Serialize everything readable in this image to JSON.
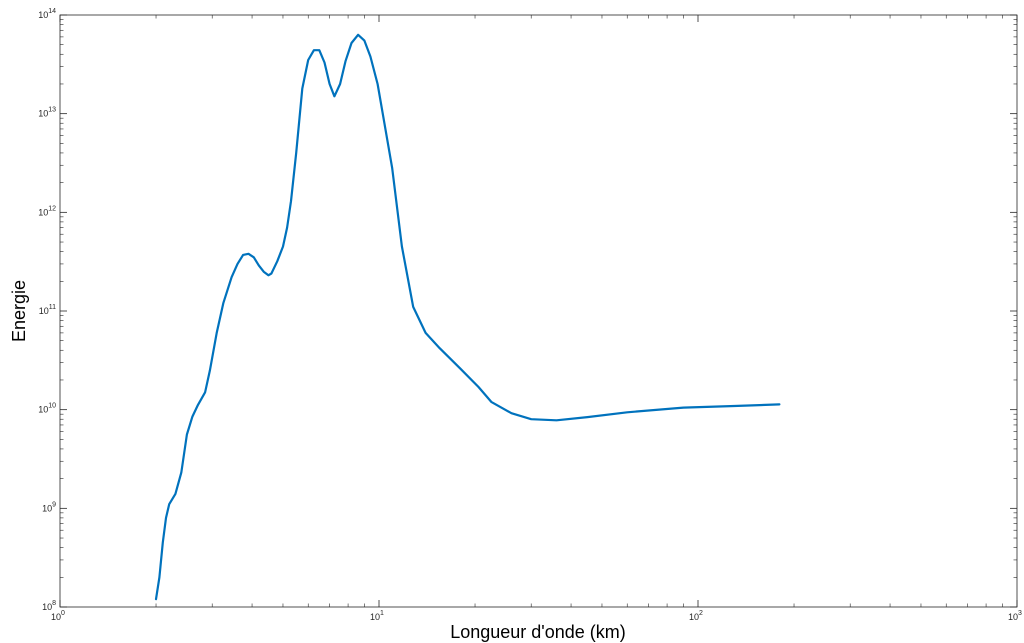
{
  "chart_data": {
    "type": "line",
    "xlabel": "Longueur d'onde (km)",
    "ylabel": "Energie",
    "xscale": "log",
    "yscale": "log",
    "xlim": [
      1,
      1000
    ],
    "ylim": [
      100000000,
      100000000000000
    ],
    "grid": false,
    "box": true,
    "x_ticks": [
      {
        "base": "10",
        "exp": "0",
        "value": 1
      },
      {
        "base": "10",
        "exp": "1",
        "value": 10
      },
      {
        "base": "10",
        "exp": "2",
        "value": 100
      },
      {
        "base": "10",
        "exp": "3",
        "value": 1000
      }
    ],
    "y_ticks": [
      {
        "base": "10",
        "exp": "8",
        "value": 100000000
      },
      {
        "base": "10",
        "exp": "9",
        "value": 1000000000
      },
      {
        "base": "10",
        "exp": "10",
        "value": 10000000000
      },
      {
        "base": "10",
        "exp": "11",
        "value": 100000000000
      },
      {
        "base": "10",
        "exp": "12",
        "value": 1000000000000
      },
      {
        "base": "10",
        "exp": "13",
        "value": 10000000000000
      },
      {
        "base": "10",
        "exp": "14",
        "value": 100000000000000
      }
    ],
    "series": [
      {
        "color": "#0072bd",
        "points": [
          [
            2.0,
            120000000
          ],
          [
            2.05,
            200000000
          ],
          [
            2.1,
            450000000
          ],
          [
            2.15,
            800000000
          ],
          [
            2.2,
            1100000000
          ],
          [
            2.3,
            1400000000
          ],
          [
            2.4,
            2300000000
          ],
          [
            2.5,
            5600000000
          ],
          [
            2.6,
            8500000000
          ],
          [
            2.7,
            11000000000
          ],
          [
            2.85,
            15000000000
          ],
          [
            2.95,
            25000000000
          ],
          [
            3.1,
            60000000000
          ],
          [
            3.25,
            120000000000
          ],
          [
            3.45,
            220000000000
          ],
          [
            3.6,
            300000000000
          ],
          [
            3.75,
            370000000000
          ],
          [
            3.9,
            380000000000
          ],
          [
            4.05,
            350000000000
          ],
          [
            4.2,
            290000000000
          ],
          [
            4.35,
            250000000000
          ],
          [
            4.5,
            230000000000
          ],
          [
            4.6,
            240000000000
          ],
          [
            4.8,
            320000000000
          ],
          [
            5.0,
            450000000000
          ],
          [
            5.15,
            700000000000
          ],
          [
            5.3,
            1300000000000
          ],
          [
            5.5,
            4000000000000
          ],
          [
            5.75,
            18000000000000
          ],
          [
            6.0,
            35000000000000
          ],
          [
            6.25,
            44000000000000
          ],
          [
            6.5,
            44000000000000
          ],
          [
            6.75,
            33000000000000
          ],
          [
            7.0,
            20000000000000
          ],
          [
            7.25,
            15000000000000
          ],
          [
            7.55,
            20000000000000
          ],
          [
            7.85,
            34000000000000
          ],
          [
            8.2,
            52000000000000
          ],
          [
            8.6,
            63000000000000
          ],
          [
            9.0,
            55000000000000
          ],
          [
            9.4,
            38000000000000
          ],
          [
            9.9,
            20000000000000
          ],
          [
            10.4,
            8000000000000
          ],
          [
            11.0,
            2800000000000
          ],
          [
            11.8,
            450000000000
          ],
          [
            12.8,
            110000000000
          ],
          [
            14.0,
            60000000000
          ],
          [
            15.5,
            42000000000
          ],
          [
            18.0,
            26000000000
          ],
          [
            20.5,
            17000000000
          ],
          [
            22.5,
            12000000000
          ],
          [
            26.0,
            9200000000
          ],
          [
            30.0,
            8000000000
          ],
          [
            36.0,
            7800000000
          ],
          [
            45.0,
            8400000000
          ],
          [
            60.0,
            9400000000
          ],
          [
            90.0,
            10500000000
          ],
          [
            130.0,
            10900000000
          ],
          [
            180.0,
            11300000000
          ]
        ]
      }
    ]
  }
}
